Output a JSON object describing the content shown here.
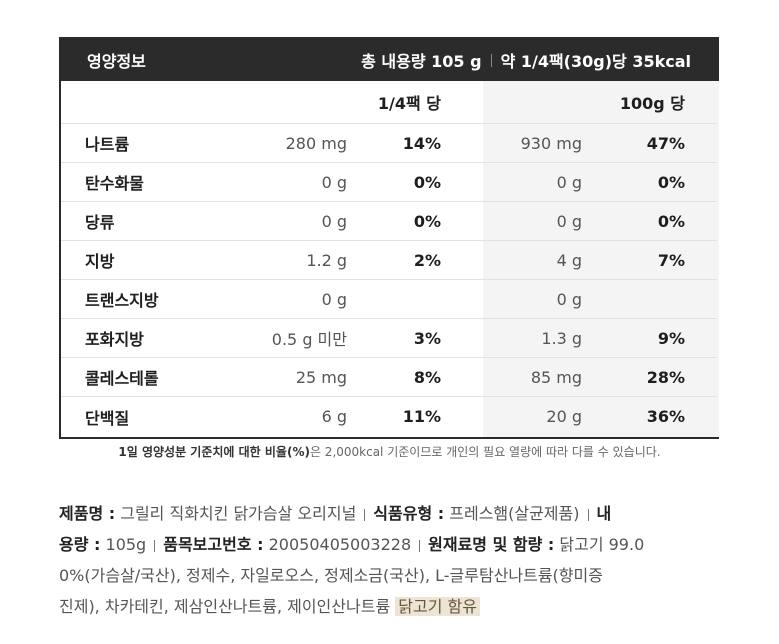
{
  "header": {
    "title": "영양정보",
    "total": "총 내용량 105 g",
    "serving": "약 1/4팩(30g)당 35kcal"
  },
  "columns": {
    "per_serving": "1/4팩 당",
    "per_100g": "100g 당"
  },
  "rows": [
    {
      "name": "나트륨",
      "v1": "280 mg",
      "p1": "14%",
      "v2": "930 mg",
      "p2": "47%"
    },
    {
      "name": "탄수화물",
      "v1": "0 g",
      "p1": "0%",
      "v2": "0 g",
      "p2": "0%"
    },
    {
      "name": "당류",
      "v1": "0 g",
      "p1": "0%",
      "v2": "0 g",
      "p2": "0%"
    },
    {
      "name": "지방",
      "v1": "1.2 g",
      "p1": "2%",
      "v2": "4 g",
      "p2": "7%"
    },
    {
      "name": "트랜스지방",
      "v1": "0 g",
      "p1": "",
      "v2": "0 g",
      "p2": ""
    },
    {
      "name": "포화지방",
      "v1": "0.5 g 미만",
      "p1": "3%",
      "v2": "1.3 g",
      "p2": "9%"
    },
    {
      "name": "콜레스테롤",
      "v1": "25 mg",
      "p1": "8%",
      "v2": "85 mg",
      "p2": "28%"
    },
    {
      "name": "단백질",
      "v1": "6 g",
      "p1": "11%",
      "v2": "20 g",
      "p2": "36%"
    }
  ],
  "footnote": {
    "bold": "1일 영양성분 기준치에 대한 비율(%)",
    "rest": "은 2,000kcal 기준이므로 개인의 필요 열량에 따라 다를 수 있습니다."
  },
  "product": {
    "name_label": "제품명 :",
    "name_value": "그릴리 직화치킨 닭가슴살 오리지널",
    "type_label": "식품유형 :",
    "type_value": "프레스햄(살균제품)",
    "volume_label_a": "내",
    "volume_label_b": "용량 :",
    "volume_value": "105g",
    "report_label": "품목보고번호 :",
    "report_value": "20050405003228",
    "ingredients_label": "원재료명 및 함량 :",
    "ingredients_line1": "닭고기 99.0",
    "ingredients_line2": "0%(가슴살/국산), 정제수, 자일로오스, 정제소금(국산), L-글루탐산나트륨(향미증",
    "ingredients_line3": "진제), 차카테킨, 제삼인산나트륨, 제이인산나트륨",
    "allergen": "닭고기 함유"
  }
}
